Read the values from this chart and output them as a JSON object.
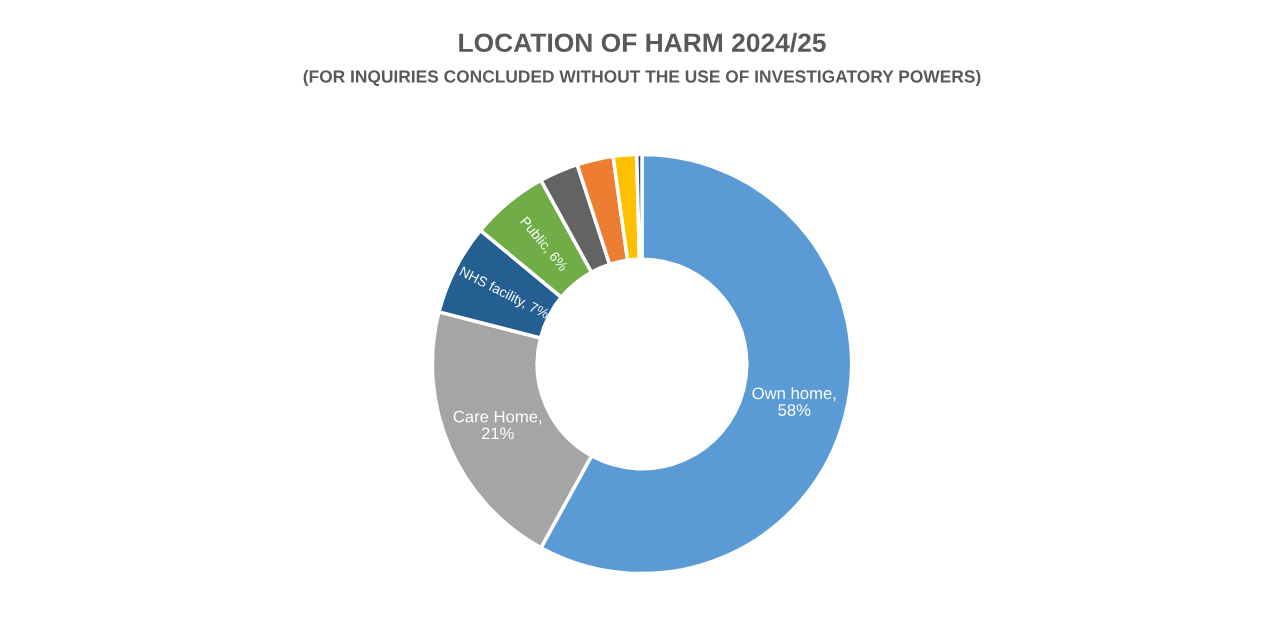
{
  "chart_data": {
    "type": "donut",
    "title": "LOCATION OF HARM 2024/25",
    "subtitle": "(FOR INQUIRIES CONCLUDED WITHOUT THE USE OF INVESTIGATORY POWERS)",
    "categories": [
      "Own home",
      "Care Home",
      "NHS facility",
      "Public",
      null,
      null,
      null,
      null
    ],
    "values": [
      58,
      21,
      7,
      6,
      3,
      2.8,
      1.8,
      0.4
    ],
    "colors": [
      "#5b9bd5",
      "#a5a5a5",
      "#255e91",
      "#70ad47",
      "#636363",
      "#ed7d31",
      "#ffc000",
      "#264478"
    ],
    "value_labels": [
      ",\n58%",
      ",\n21%",
      ", 7%",
      ", 6%",
      null,
      null,
      null,
      null
    ]
  }
}
